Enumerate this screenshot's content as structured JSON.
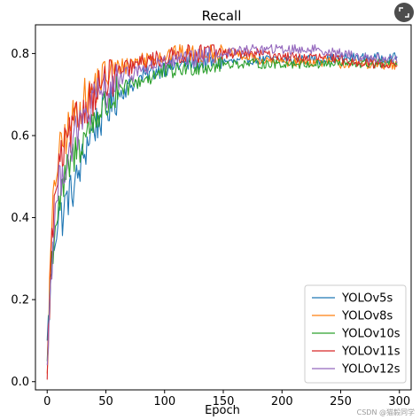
{
  "chart_data": {
    "type": "line",
    "title": "Recall",
    "xlabel": "Epoch",
    "ylabel": "",
    "xlim": [
      -10,
      310
    ],
    "ylim": [
      -0.02,
      0.87
    ],
    "xticks": [
      0,
      50,
      100,
      150,
      200,
      250,
      300
    ],
    "yticks": [
      0.0,
      0.2,
      0.4,
      0.6,
      0.8
    ],
    "legend_position": "bottom-right",
    "grid": false,
    "series": [
      {
        "name": "YOLOv5s",
        "color": "#1f77b4",
        "points": [
          [
            0,
            0.1
          ],
          [
            2,
            0.18
          ],
          [
            4,
            0.28
          ],
          [
            6,
            0.34
          ],
          [
            8,
            0.38
          ],
          [
            10,
            0.42
          ],
          [
            13,
            0.4
          ],
          [
            16,
            0.44
          ],
          [
            20,
            0.46
          ],
          [
            24,
            0.48
          ],
          [
            28,
            0.52
          ],
          [
            32,
            0.56
          ],
          [
            36,
            0.6
          ],
          [
            40,
            0.62
          ],
          [
            45,
            0.64
          ],
          [
            50,
            0.66
          ],
          [
            55,
            0.68
          ],
          [
            60,
            0.7
          ],
          [
            65,
            0.71
          ],
          [
            70,
            0.72
          ],
          [
            80,
            0.74
          ],
          [
            90,
            0.755
          ],
          [
            100,
            0.765
          ],
          [
            110,
            0.77
          ],
          [
            120,
            0.775
          ],
          [
            130,
            0.78
          ],
          [
            140,
            0.78
          ],
          [
            150,
            0.78
          ],
          [
            160,
            0.78
          ],
          [
            170,
            0.785
          ],
          [
            180,
            0.785
          ],
          [
            190,
            0.785
          ],
          [
            200,
            0.785
          ],
          [
            210,
            0.785
          ],
          [
            220,
            0.785
          ],
          [
            230,
            0.785
          ],
          [
            240,
            0.787
          ],
          [
            250,
            0.79
          ],
          [
            260,
            0.79
          ],
          [
            270,
            0.79
          ],
          [
            280,
            0.79
          ],
          [
            290,
            0.79
          ],
          [
            298,
            0.79
          ]
        ]
      },
      {
        "name": "YOLOv8s",
        "color": "#ff7f0e",
        "points": [
          [
            0,
            0.02
          ],
          [
            2,
            0.22
          ],
          [
            4,
            0.38
          ],
          [
            6,
            0.46
          ],
          [
            8,
            0.52
          ],
          [
            10,
            0.55
          ],
          [
            13,
            0.58
          ],
          [
            16,
            0.6
          ],
          [
            20,
            0.63
          ],
          [
            24,
            0.65
          ],
          [
            28,
            0.67
          ],
          [
            32,
            0.69
          ],
          [
            36,
            0.7
          ],
          [
            40,
            0.72
          ],
          [
            45,
            0.735
          ],
          [
            50,
            0.745
          ],
          [
            55,
            0.755
          ],
          [
            60,
            0.765
          ],
          [
            65,
            0.77
          ],
          [
            70,
            0.775
          ],
          [
            80,
            0.785
          ],
          [
            90,
            0.79
          ],
          [
            100,
            0.795
          ],
          [
            110,
            0.8
          ],
          [
            120,
            0.8
          ],
          [
            130,
            0.8
          ],
          [
            140,
            0.8
          ],
          [
            150,
            0.8
          ],
          [
            160,
            0.8
          ],
          [
            170,
            0.79
          ],
          [
            180,
            0.785
          ],
          [
            190,
            0.78
          ],
          [
            200,
            0.78
          ],
          [
            210,
            0.78
          ],
          [
            220,
            0.78
          ],
          [
            230,
            0.78
          ],
          [
            240,
            0.78
          ],
          [
            250,
            0.775
          ],
          [
            260,
            0.775
          ],
          [
            270,
            0.775
          ],
          [
            280,
            0.775
          ],
          [
            290,
            0.77
          ],
          [
            298,
            0.77
          ]
        ]
      },
      {
        "name": "YOLOv10s",
        "color": "#2ca02c",
        "points": [
          [
            0,
            0.05
          ],
          [
            2,
            0.2
          ],
          [
            4,
            0.3
          ],
          [
            6,
            0.36
          ],
          [
            8,
            0.4
          ],
          [
            10,
            0.43
          ],
          [
            13,
            0.46
          ],
          [
            16,
            0.5
          ],
          [
            20,
            0.53
          ],
          [
            24,
            0.56
          ],
          [
            28,
            0.58
          ],
          [
            32,
            0.6
          ],
          [
            36,
            0.62
          ],
          [
            40,
            0.64
          ],
          [
            45,
            0.66
          ],
          [
            50,
            0.67
          ],
          [
            55,
            0.69
          ],
          [
            60,
            0.7
          ],
          [
            65,
            0.71
          ],
          [
            70,
            0.72
          ],
          [
            80,
            0.735
          ],
          [
            90,
            0.745
          ],
          [
            100,
            0.755
          ],
          [
            110,
            0.76
          ],
          [
            120,
            0.765
          ],
          [
            130,
            0.77
          ],
          [
            140,
            0.77
          ],
          [
            150,
            0.775
          ],
          [
            160,
            0.775
          ],
          [
            170,
            0.775
          ],
          [
            180,
            0.775
          ],
          [
            190,
            0.775
          ],
          [
            200,
            0.775
          ],
          [
            210,
            0.775
          ],
          [
            220,
            0.775
          ],
          [
            230,
            0.775
          ],
          [
            240,
            0.775
          ],
          [
            250,
            0.775
          ],
          [
            260,
            0.775
          ],
          [
            270,
            0.775
          ],
          [
            280,
            0.775
          ],
          [
            290,
            0.775
          ],
          [
            298,
            0.775
          ]
        ]
      },
      {
        "name": "YOLOv11s",
        "color": "#d62728",
        "points": [
          [
            0,
            0.005
          ],
          [
            2,
            0.2
          ],
          [
            4,
            0.34
          ],
          [
            6,
            0.42
          ],
          [
            8,
            0.48
          ],
          [
            10,
            0.52
          ],
          [
            13,
            0.55
          ],
          [
            16,
            0.58
          ],
          [
            20,
            0.6
          ],
          [
            24,
            0.63
          ],
          [
            28,
            0.65
          ],
          [
            32,
            0.67
          ],
          [
            36,
            0.69
          ],
          [
            40,
            0.7
          ],
          [
            45,
            0.72
          ],
          [
            50,
            0.73
          ],
          [
            55,
            0.74
          ],
          [
            60,
            0.75
          ],
          [
            65,
            0.76
          ],
          [
            70,
            0.765
          ],
          [
            80,
            0.775
          ],
          [
            90,
            0.785
          ],
          [
            100,
            0.79
          ],
          [
            110,
            0.795
          ],
          [
            120,
            0.8
          ],
          [
            130,
            0.8
          ],
          [
            140,
            0.805
          ],
          [
            150,
            0.8
          ],
          [
            160,
            0.8
          ],
          [
            170,
            0.8
          ],
          [
            180,
            0.8
          ],
          [
            190,
            0.795
          ],
          [
            200,
            0.795
          ],
          [
            210,
            0.79
          ],
          [
            220,
            0.79
          ],
          [
            230,
            0.79
          ],
          [
            240,
            0.79
          ],
          [
            250,
            0.785
          ],
          [
            260,
            0.78
          ],
          [
            270,
            0.78
          ],
          [
            280,
            0.775
          ],
          [
            290,
            0.775
          ],
          [
            298,
            0.775
          ]
        ]
      },
      {
        "name": "YOLOv12s",
        "color": "#9467bd",
        "points": [
          [
            0,
            0.04
          ],
          [
            2,
            0.18
          ],
          [
            4,
            0.3
          ],
          [
            6,
            0.38
          ],
          [
            8,
            0.44
          ],
          [
            10,
            0.48
          ],
          [
            13,
            0.51
          ],
          [
            16,
            0.54
          ],
          [
            20,
            0.57
          ],
          [
            24,
            0.6
          ],
          [
            28,
            0.62
          ],
          [
            32,
            0.64
          ],
          [
            36,
            0.66
          ],
          [
            40,
            0.68
          ],
          [
            45,
            0.7
          ],
          [
            50,
            0.71
          ],
          [
            55,
            0.72
          ],
          [
            60,
            0.73
          ],
          [
            65,
            0.74
          ],
          [
            70,
            0.75
          ],
          [
            80,
            0.76
          ],
          [
            90,
            0.77
          ],
          [
            100,
            0.775
          ],
          [
            110,
            0.78
          ],
          [
            120,
            0.785
          ],
          [
            130,
            0.79
          ],
          [
            140,
            0.795
          ],
          [
            150,
            0.8
          ],
          [
            160,
            0.805
          ],
          [
            170,
            0.81
          ],
          [
            180,
            0.81
          ],
          [
            190,
            0.81
          ],
          [
            200,
            0.81
          ],
          [
            210,
            0.81
          ],
          [
            220,
            0.81
          ],
          [
            230,
            0.81
          ],
          [
            240,
            0.805
          ],
          [
            250,
            0.8
          ],
          [
            260,
            0.795
          ],
          [
            270,
            0.79
          ],
          [
            280,
            0.79
          ],
          [
            290,
            0.785
          ],
          [
            298,
            0.785
          ]
        ]
      }
    ]
  },
  "watermark": "CSDN @猫毅同学"
}
